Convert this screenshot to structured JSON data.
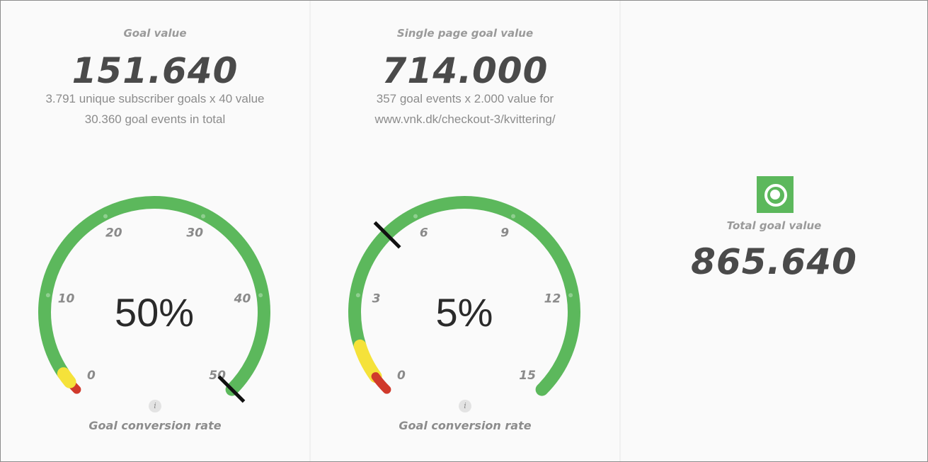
{
  "goal_value": {
    "title": "Goal value",
    "value": "151.640",
    "line1": "3.791 unique subscriber goals x 40 value",
    "line2": "30.360 goal events in total"
  },
  "single_page_goal_value": {
    "title": "Single page goal value",
    "value": "714.000",
    "line1": "357 goal events x 2.000 value for",
    "line2": "www.vnk.dk/checkout-3/kvittering/"
  },
  "total_goal_value": {
    "icon": "target-icon",
    "title": "Total goal value",
    "value": "865.640"
  },
  "gauges": [
    {
      "label": "Goal conversion rate",
      "info_label": "i",
      "center_text": "50%",
      "value": 50,
      "min": 0,
      "max": 50,
      "ticks": [
        "0",
        "10",
        "20",
        "30",
        "40",
        "50"
      ],
      "bands": [
        {
          "from": 0,
          "to": 1,
          "color": "#d0392b"
        },
        {
          "from": 1,
          "to": 2,
          "color": "#f5e23a"
        },
        {
          "from": 2,
          "to": 50,
          "color": "#5cb85c"
        }
      ]
    },
    {
      "label": "Goal conversion rate",
      "info_label": "i",
      "center_text": "5%",
      "value": 5,
      "min": 0,
      "max": 15,
      "ticks": [
        "0",
        "3",
        "6",
        "9",
        "12",
        "15"
      ],
      "bands": [
        {
          "from": 0,
          "to": 0.5,
          "color": "#d0392b"
        },
        {
          "from": 0.5,
          "to": 1.5,
          "color": "#f5e23a"
        },
        {
          "from": 1.5,
          "to": 15,
          "color": "#5cb85c"
        }
      ]
    }
  ]
}
